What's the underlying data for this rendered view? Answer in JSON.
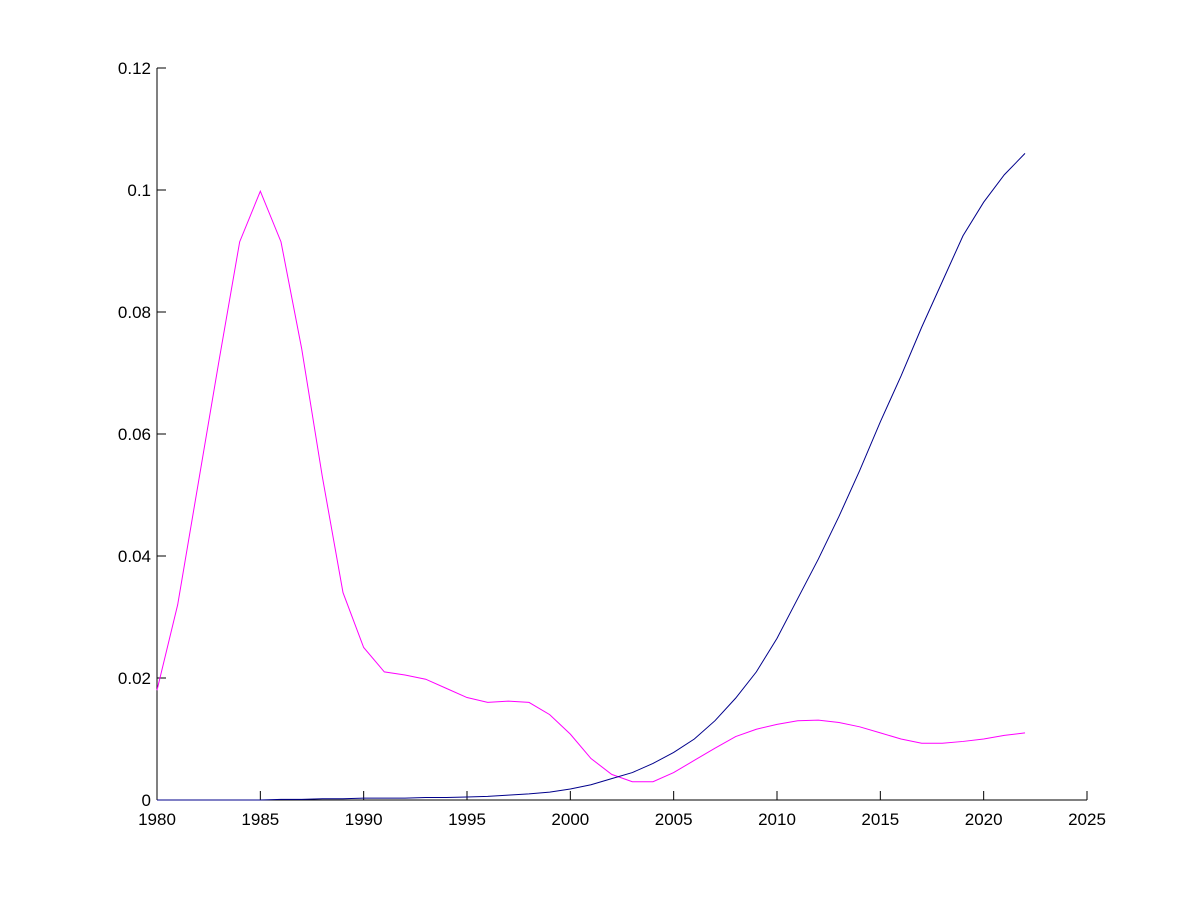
{
  "chart_data": {
    "type": "line",
    "x": [
      1980,
      1981,
      1982,
      1983,
      1984,
      1985,
      1986,
      1987,
      1988,
      1989,
      1990,
      1991,
      1992,
      1993,
      1994,
      1995,
      1996,
      1997,
      1998,
      1999,
      2000,
      2001,
      2002,
      2003,
      2004,
      2005,
      2006,
      2007,
      2008,
      2009,
      2010,
      2011,
      2012,
      2013,
      2014,
      2015,
      2016,
      2017,
      2018,
      2019,
      2020,
      2021,
      2022
    ],
    "series": [
      {
        "color": "#ff00ff",
        "values": [
          0.018,
          0.032,
          0.052,
          0.072,
          0.0915,
          0.0998,
          0.0915,
          0.074,
          0.053,
          0.034,
          0.025,
          0.021,
          0.0205,
          0.0198,
          0.0183,
          0.0168,
          0.016,
          0.0162,
          0.016,
          0.014,
          0.0108,
          0.0068,
          0.0042,
          0.003,
          0.003,
          0.0045,
          0.0065,
          0.0085,
          0.0104,
          0.0116,
          0.0124,
          0.013,
          0.0131,
          0.0127,
          0.012,
          0.011,
          0.01,
          0.0093,
          0.0093,
          0.0096,
          0.01,
          0.0106,
          0.011
        ]
      },
      {
        "color": "#00008b",
        "values": [
          0,
          0,
          0,
          0,
          0,
          0,
          0.0001,
          0.0001,
          0.0002,
          0.0002,
          0.0003,
          0.0003,
          0.0003,
          0.0004,
          0.0004,
          0.0005,
          0.0006,
          0.0008,
          0.001,
          0.0013,
          0.0018,
          0.0025,
          0.0035,
          0.0045,
          0.006,
          0.0078,
          0.01,
          0.013,
          0.0167,
          0.021,
          0.0265,
          0.033,
          0.0395,
          0.0465,
          0.054,
          0.062,
          0.0695,
          0.0775,
          0.085,
          0.0925,
          0.098,
          0.1025,
          0.106
        ]
      }
    ],
    "xlim": [
      1980,
      2025
    ],
    "xticks": [
      1980,
      1985,
      1990,
      1995,
      2000,
      2005,
      2010,
      2015,
      2020,
      2025
    ],
    "ylim": [
      0,
      0.12
    ],
    "yticks": [
      0,
      0.02,
      0.04,
      0.06,
      0.08,
      0.1,
      0.12
    ]
  }
}
